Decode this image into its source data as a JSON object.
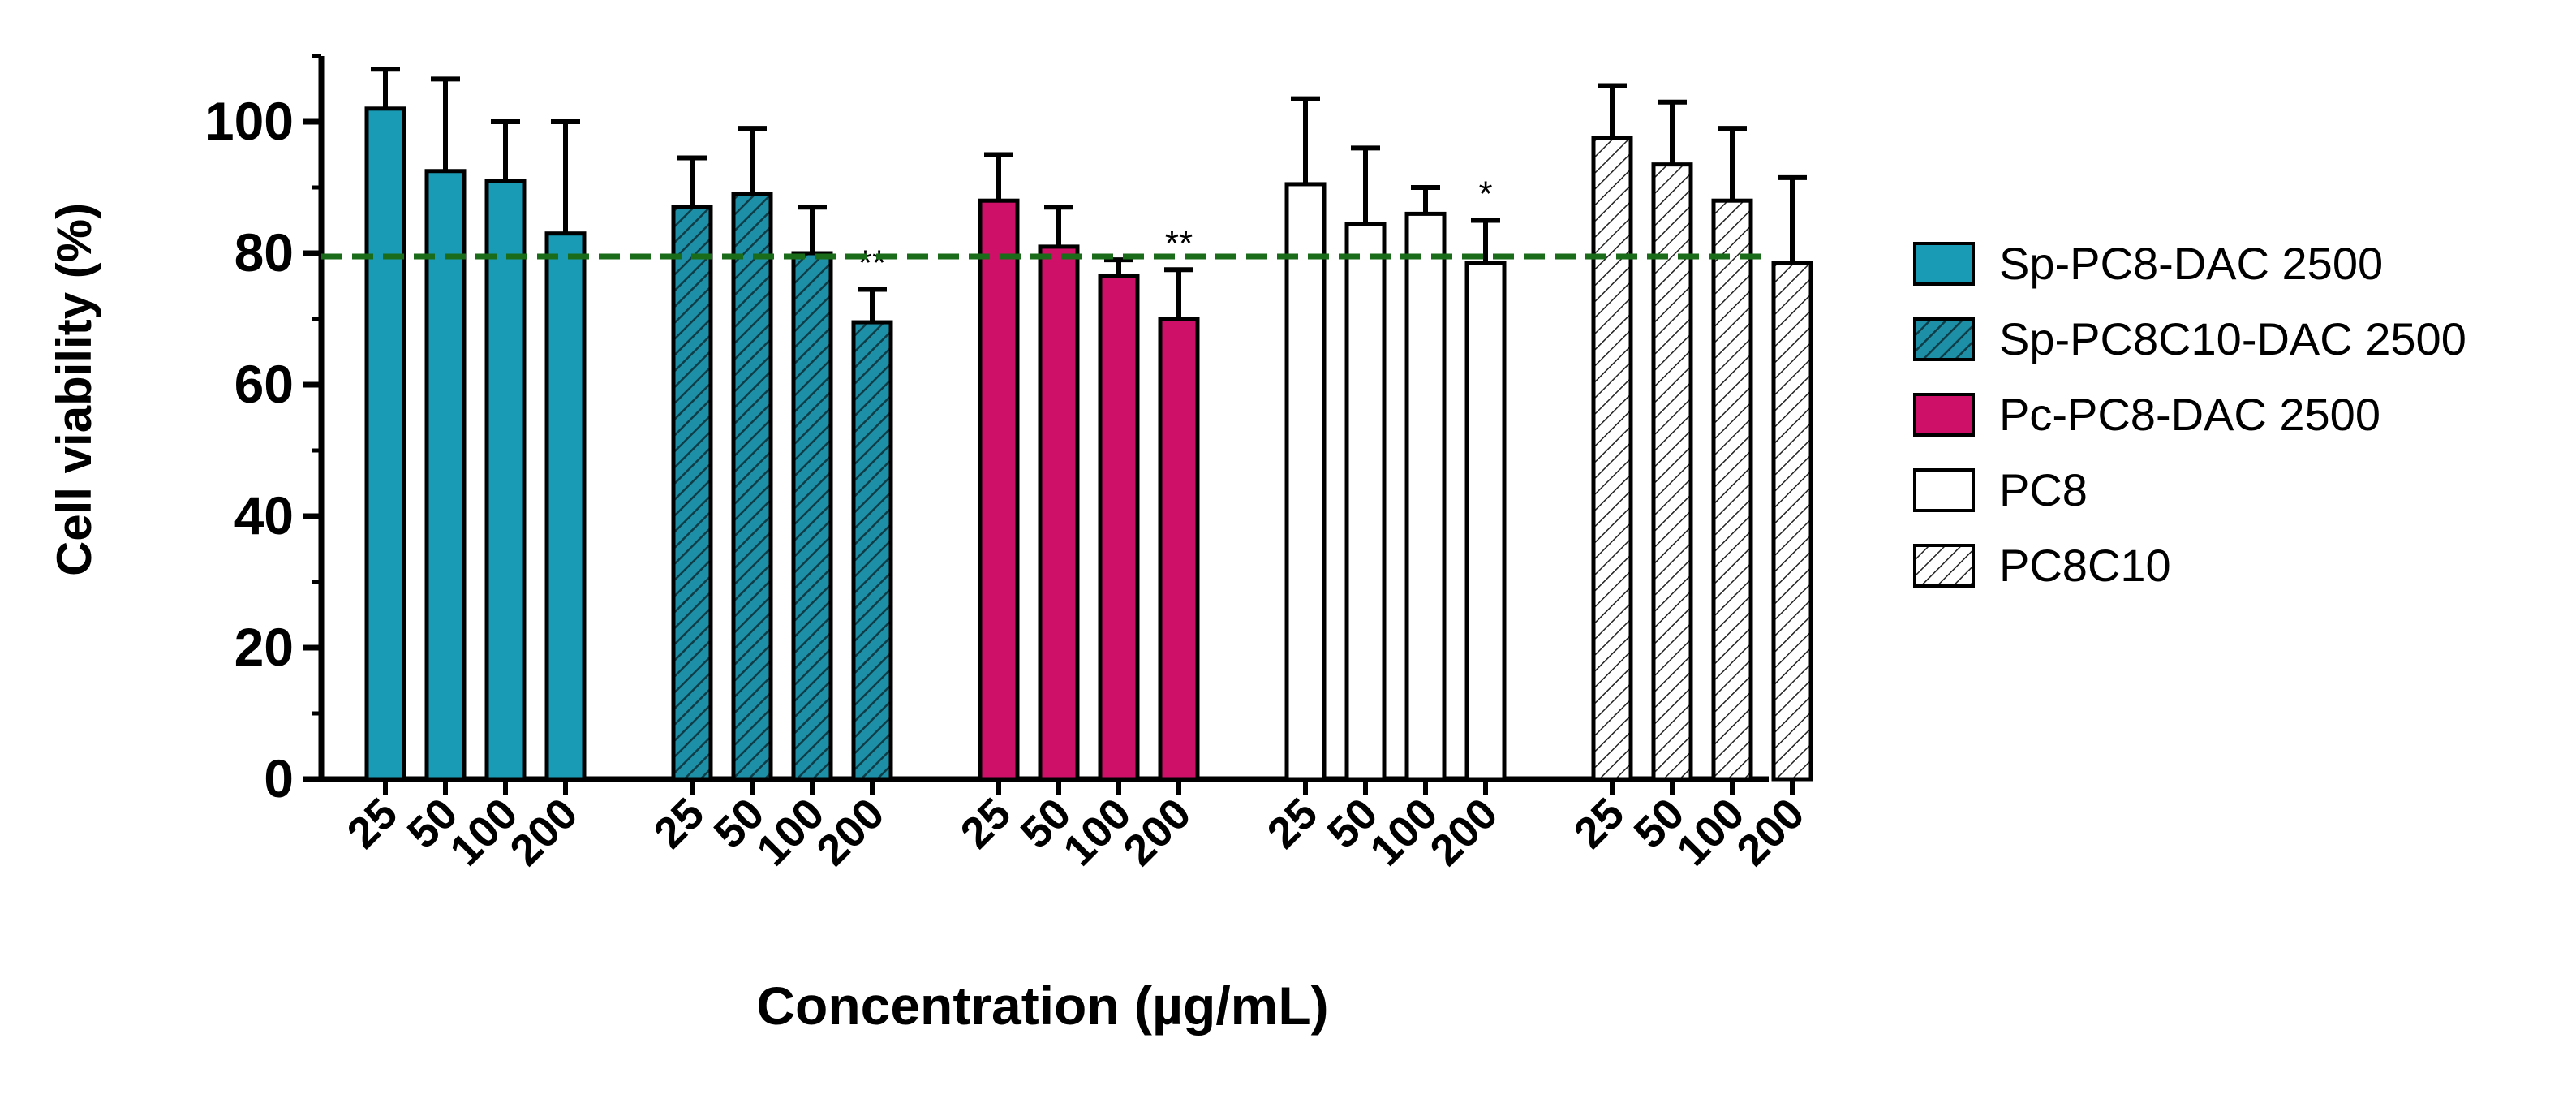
{
  "chart_data": {
    "type": "bar",
    "title": "",
    "ylabel": "Cell viability (%)",
    "xlabel": "Concentration (µg/mL)",
    "ylim": [
      0,
      110
    ],
    "yticks": [
      0,
      20,
      40,
      60,
      80,
      100
    ],
    "grid": false,
    "legend_position": "right",
    "reference_line": {
      "y": 79.5,
      "color": "#1a6b1a",
      "style": "dashed"
    },
    "categories": [
      "25",
      "50",
      "100",
      "200"
    ],
    "series": [
      {
        "name": "Sp-PC8-DAC 2500",
        "fill": "#1a9bb5",
        "pattern": "solid",
        "values": [
          102,
          92.5,
          91,
          83
        ],
        "errors": [
          6,
          14,
          9,
          17
        ],
        "significance": [
          "",
          "",
          "",
          ""
        ]
      },
      {
        "name": "Sp-PC8C10-DAC 2500",
        "fill": "#1d8fa6",
        "pattern": "hatch",
        "values": [
          87,
          89,
          80,
          69.5
        ],
        "errors": [
          7.5,
          10,
          7,
          5
        ],
        "significance": [
          "",
          "",
          "",
          "**"
        ]
      },
      {
        "name": "Pc-PC8-DAC 2500",
        "fill": "#cf1068",
        "pattern": "solid",
        "values": [
          88,
          81,
          76.5,
          70
        ],
        "errors": [
          7,
          6,
          2.5,
          7.5
        ],
        "significance": [
          "",
          "",
          "",
          "**"
        ]
      },
      {
        "name": "PC8",
        "fill": "#ffffff",
        "pattern": "solid",
        "values": [
          90.5,
          84.5,
          86,
          78.5
        ],
        "errors": [
          13,
          11.5,
          4,
          6.5
        ],
        "significance": [
          "",
          "",
          "",
          "*"
        ]
      },
      {
        "name": "PC8C10",
        "fill": "#ffffff",
        "pattern": "hatch-light",
        "values": [
          97.5,
          93.5,
          88,
          78.5
        ],
        "errors": [
          8,
          9.5,
          11,
          13
        ],
        "significance": [
          "",
          "",
          "",
          ""
        ]
      }
    ]
  }
}
